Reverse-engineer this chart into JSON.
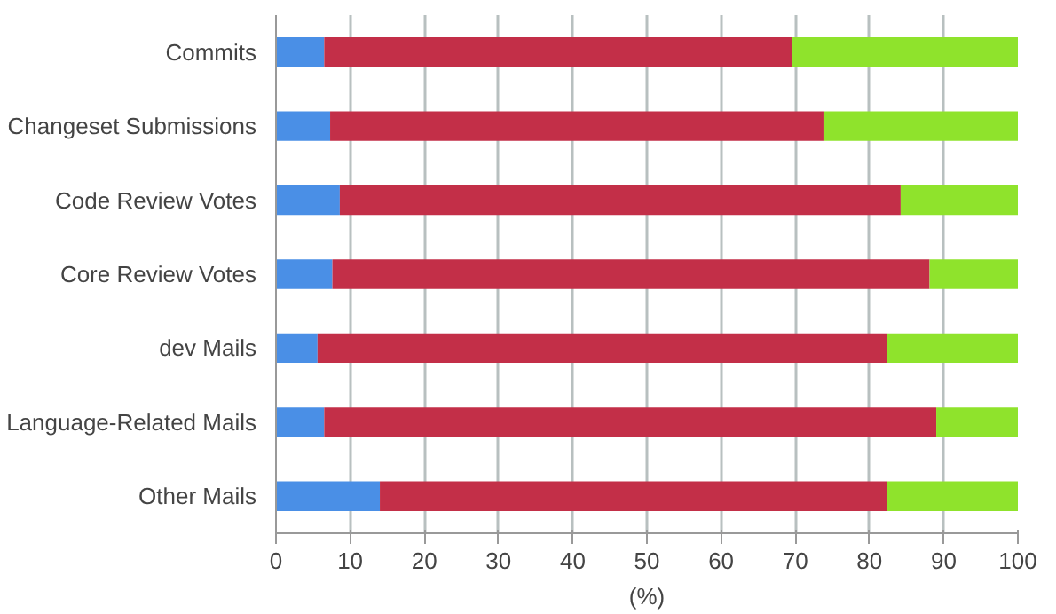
{
  "chart_data": {
    "type": "bar",
    "orientation": "horizontal",
    "stacked": true,
    "xlabel": "(%)",
    "categories": [
      "Commits",
      "Changeset Submissions",
      "Code Review Votes",
      "Core Review Votes",
      "dev Mails",
      "Language-Related Mails",
      "Other Mails"
    ],
    "series": [
      {
        "color": "#4a8fe6",
        "values": [
          6.5,
          7.3,
          8.6,
          7.6,
          5.6,
          6.5,
          14.0
        ]
      },
      {
        "color": "#c32f48",
        "values": [
          63.1,
          66.5,
          75.6,
          80.5,
          76.7,
          82.5,
          68.3
        ]
      },
      {
        "color": "#8fe32c",
        "values": [
          30.4,
          26.2,
          15.8,
          11.9,
          17.7,
          11.0,
          17.7
        ]
      }
    ],
    "xlim": [
      0,
      100
    ],
    "xticks": [
      0,
      10,
      20,
      30,
      40,
      50,
      60,
      70,
      80,
      90,
      100
    ],
    "grid": "x"
  }
}
